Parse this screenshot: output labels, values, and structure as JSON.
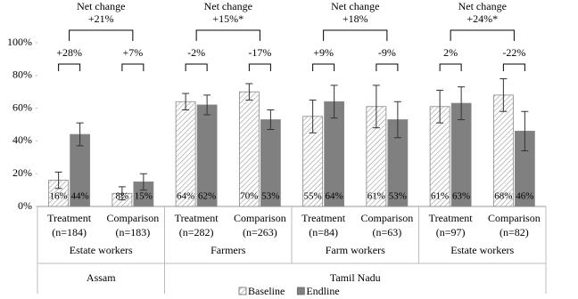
{
  "chart_data": {
    "type": "bar",
    "categories": [
      "Treatment",
      "Comparison",
      "Treatment",
      "Comparison",
      "Treatment",
      "Comparison",
      "Treatment",
      "Comparison"
    ],
    "sample_sizes": [
      "(n=184)",
      "(n=183)",
      "(n=282)",
      "(n=263)",
      "(n=84)",
      "(n=63)",
      "(n=97)",
      "(n=82)"
    ],
    "groups": [
      "Estate workers",
      "Farmers",
      "Farm workers",
      "Estate workers"
    ],
    "regions": [
      "Assam",
      "Tamil Nadu"
    ],
    "series": [
      {
        "name": "Baseline",
        "color": "#ffffff",
        "hatch": true,
        "values": [
          16,
          8,
          64,
          70,
          55,
          61,
          61,
          68
        ],
        "errors": [
          5,
          4,
          5,
          5,
          10,
          13,
          10,
          10
        ],
        "value_labels": [
          "16%",
          "8%",
          "64%",
          "70%",
          "55%",
          "61%",
          "61%",
          "68%"
        ]
      },
      {
        "name": "Endline",
        "color": "#808080",
        "hatch": false,
        "values": [
          44,
          15,
          62,
          53,
          64,
          53,
          63,
          46
        ],
        "errors": [
          7,
          5,
          6,
          6,
          10,
          11,
          10,
          12
        ],
        "value_labels": [
          "44%",
          "15%",
          "62%",
          "53%",
          "64%",
          "53%",
          "63%",
          "46%"
        ]
      }
    ],
    "pair_changes": [
      "+28%",
      "+7%",
      "-2%",
      "-17%",
      "+9%",
      "-9%",
      "2%",
      "-22%"
    ],
    "net_changes": [
      {
        "label": "Net change",
        "value": "+21%"
      },
      {
        "label": "Net change",
        "value": "+15%*"
      },
      {
        "label": "Net change",
        "value": "+18%"
      },
      {
        "label": "Net change",
        "value": "+24%*"
      }
    ],
    "ylim": [
      0,
      100
    ],
    "yticks": [
      {
        "value": 0,
        "label": "0%"
      },
      {
        "value": 20,
        "label": "20%"
      },
      {
        "value": 40,
        "label": "40%"
      },
      {
        "value": 60,
        "label": "60%"
      },
      {
        "value": 80,
        "label": "80%"
      },
      {
        "value": 100,
        "label": "100%"
      }
    ],
    "grid": false,
    "legend": "bottom"
  }
}
